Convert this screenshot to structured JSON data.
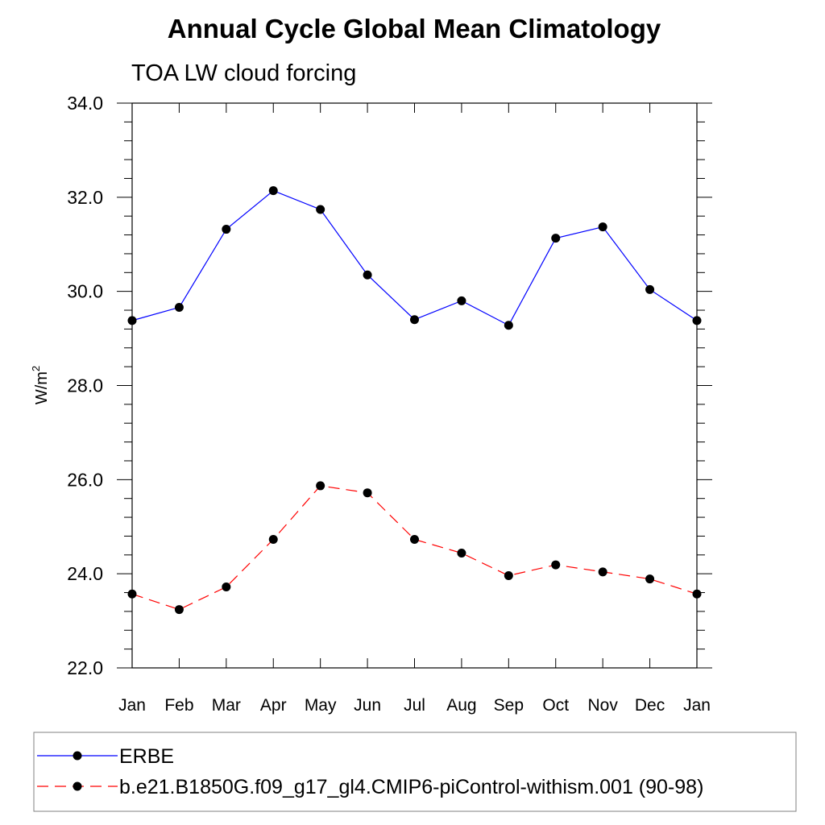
{
  "chart_data": {
    "type": "line",
    "title": "Annual Cycle Global Mean Climatology",
    "subtitle": "TOA LW cloud forcing",
    "xlabel": "",
    "ylabel": "W/m",
    "ylabel_superscript": "2",
    "categories": [
      "Jan",
      "Feb",
      "Mar",
      "Apr",
      "May",
      "Jun",
      "Jul",
      "Aug",
      "Sep",
      "Oct",
      "Nov",
      "Dec",
      "Jan"
    ],
    "ylim": [
      22.0,
      34.0
    ],
    "yticks": [
      "22.0",
      "24.0",
      "26.0",
      "28.0",
      "30.0",
      "32.0",
      "34.0"
    ],
    "grid": false,
    "legend_position": "bottom",
    "series": [
      {
        "name": "ERBE",
        "color": "#0000ff",
        "line_style": "solid",
        "marker": "filled-circle",
        "values": [
          29.38,
          29.66,
          31.32,
          32.14,
          31.74,
          30.35,
          29.4,
          29.8,
          29.28,
          31.13,
          31.37,
          30.04,
          29.38
        ]
      },
      {
        "name": "b.e21.B1850G.f09_g17_gl4.CMIP6-piControl-withism.001 (90-98)",
        "color": "#ff0000",
        "line_style": "dashed",
        "marker": "filled-circle",
        "values": [
          23.57,
          23.24,
          23.72,
          24.73,
          25.87,
          25.72,
          24.73,
          24.44,
          23.96,
          24.19,
          24.04,
          23.89,
          23.57
        ]
      }
    ]
  }
}
